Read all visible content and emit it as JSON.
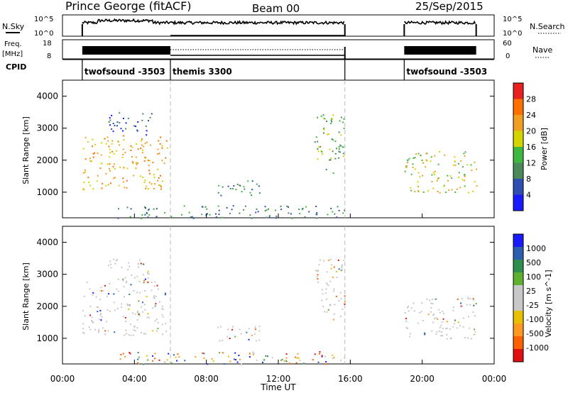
{
  "header": {
    "station": "Prince George (fitACF)",
    "beam": "Beam 00",
    "date": "25/Sep/2015"
  },
  "top_panels": {
    "nsky_label": "N.Sky",
    "nsky_ticks": [
      "10^5",
      "10^0"
    ],
    "nsearch_label": "N.Search",
    "freq_label_1": "Freq.",
    "freq_label_2": "[MHz]",
    "freq_ticks": [
      "18",
      "8"
    ],
    "nave_ticks": [
      "60",
      "0"
    ],
    "nave_label": "Nave",
    "cpid_label": "CPID",
    "cpid_segments": [
      {
        "name": "twofsound -3503",
        "start_hour": 1.1,
        "end_hour": 6.0
      },
      {
        "name": "themis 3300",
        "start_hour": 6.0,
        "end_hour": 15.7
      },
      {
        "name": "twofsound -3503",
        "start_hour": 19.0,
        "end_hour": 23.0
      }
    ]
  },
  "colors": {
    "power": [
      "#1a1aff",
      "#2f4fb0",
      "#4a8a5a",
      "#3fb83f",
      "#d4d400",
      "#f0a020",
      "#ff7000",
      "#e82020"
    ],
    "velocity": [
      "#e01010",
      "#ff6000",
      "#ff9a20",
      "#e8c000",
      "#c8c8c8",
      "#c8c8c8",
      "#60b030",
      "#2f8f4f",
      "#2c5fb0",
      "#1a1aff"
    ]
  },
  "chart_data": [
    {
      "type": "heatmap",
      "name": "power",
      "xlabel": "",
      "ylabel": "Slant Range [km]",
      "xlim": [
        0,
        24
      ],
      "ylim": [
        200,
        4500
      ],
      "yticks": [
        "1000",
        "2000",
        "3000",
        "4000"
      ],
      "colorbar_label": "Power [dB]",
      "colorbar_ticks": [
        "4",
        "8",
        "12",
        "16",
        "20",
        "24",
        "28"
      ],
      "data_gaps_hours": [
        [
          0,
          1.1
        ],
        [
          15.7,
          19.0
        ],
        [
          23.0,
          24
        ]
      ],
      "scatter_regions": [
        {
          "hour_range": [
            1.1,
            5.8
          ],
          "range_km": [
            1100,
            2800
          ],
          "power_db": 22
        },
        {
          "hour_range": [
            2.5,
            5.0
          ],
          "range_km": [
            2800,
            3500
          ],
          "power_db": 8
        },
        {
          "hour_range": [
            8.5,
            11.0
          ],
          "range_km": [
            900,
            1400
          ],
          "power_db": 10
        },
        {
          "hour_range": [
            14.0,
            15.7
          ],
          "range_km": [
            1600,
            3500
          ],
          "power_db": 14
        },
        {
          "hour_range": [
            19.0,
            23.0
          ],
          "range_km": [
            1000,
            2300
          ],
          "power_db": 18
        },
        {
          "hour_range": [
            3.0,
            15.7
          ],
          "range_km": [
            200,
            600
          ],
          "power_db": 10
        }
      ]
    },
    {
      "type": "heatmap",
      "name": "velocity",
      "xlabel": "Time UT",
      "ylabel": "Slant Range [km]",
      "xlim": [
        0,
        24
      ],
      "ylim": [
        200,
        4500
      ],
      "xticks": [
        "00:00",
        "04:00",
        "08:00",
        "12:00",
        "16:00",
        "20:00",
        "00:00"
      ],
      "yticks": [
        "1000",
        "2000",
        "3000",
        "4000"
      ],
      "colorbar_label": "Velocity [m s^-1]",
      "colorbar_ticks": [
        "1000",
        "500",
        "100",
        "25",
        "-25",
        "-100",
        "-500",
        "-1000"
      ],
      "data_gaps_hours": [
        [
          0,
          1.1
        ],
        [
          15.7,
          19.0
        ],
        [
          23.0,
          24
        ]
      ]
    }
  ]
}
